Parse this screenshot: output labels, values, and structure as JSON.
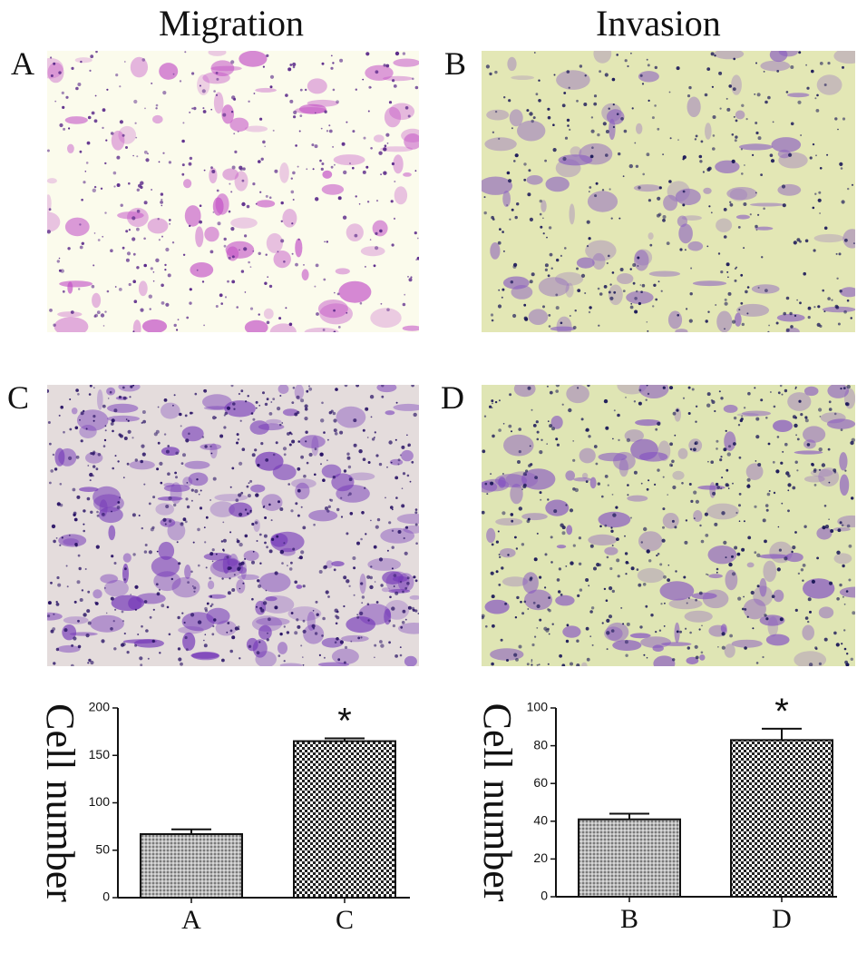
{
  "titles": {
    "migration": "Migration",
    "invasion": "Invasion"
  },
  "panels": [
    {
      "letter": "A",
      "background": "#fbfbec",
      "stain": "#c24fc6",
      "dot": "#5b2a8a",
      "density": 0.55
    },
    {
      "letter": "B",
      "background": "#e3e7b5",
      "stain": "#8b5fc1",
      "dot": "#1e1b5a",
      "density": 0.55
    },
    {
      "letter": "C",
      "background": "#e4dcdc",
      "stain": "#7336b8",
      "dot": "#2a1466",
      "density": 0.95
    },
    {
      "letter": "D",
      "background": "#dfe5b4",
      "stain": "#8350c2",
      "dot": "#1e1b5a",
      "density": 0.75
    }
  ],
  "chart_data": [
    {
      "type": "bar",
      "ylabel": "Cell number",
      "categories": [
        "A",
        "C"
      ],
      "values": [
        67,
        165
      ],
      "errors": [
        5,
        3
      ],
      "ylim": [
        0,
        200
      ],
      "yticks": [
        0,
        50,
        100,
        150,
        200
      ],
      "annotations": [
        {
          "category": "C",
          "text": "*"
        }
      ]
    },
    {
      "type": "bar",
      "ylabel": "Cell number",
      "categories": [
        "B",
        "D"
      ],
      "values": [
        41,
        83
      ],
      "errors": [
        3,
        6
      ],
      "ylim": [
        0,
        100
      ],
      "yticks": [
        0,
        20,
        40,
        60,
        80,
        100
      ],
      "annotations": [
        {
          "category": "D",
          "text": "*"
        }
      ]
    }
  ]
}
